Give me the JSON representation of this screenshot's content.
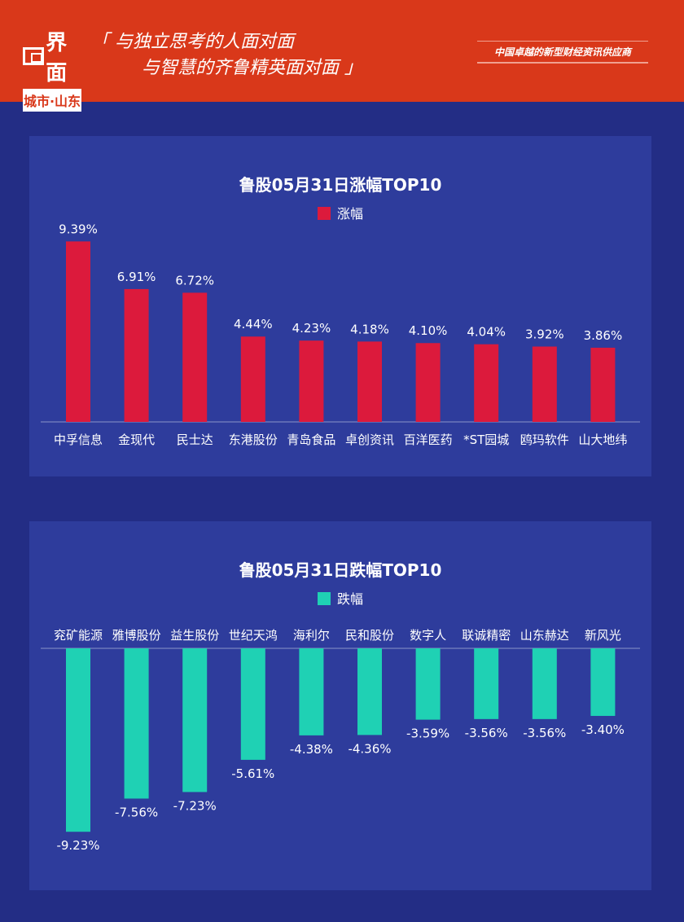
{
  "header": {
    "logo_text": "界面",
    "logo_sub": "城市·山东",
    "slogan_line1": "「 与独立思考的人面对面",
    "slogan_line2": "与智慧的齐鲁精英面对面 」",
    "tagline": "中国卓越的新型财经资讯供应商"
  },
  "chart_data": [
    {
      "type": "bar",
      "title": "鲁股05月31日涨幅TOP10",
      "legend": "涨幅",
      "color": "#dc1a3c",
      "legend_position": "top",
      "categories": [
        "中孚信息",
        "金现代",
        "民士达",
        "东港股份",
        "青岛食品",
        "卓创资讯",
        "百洋医药",
        "*ST园城",
        "鸥玛软件",
        "山大地纬"
      ],
      "values": [
        9.39,
        6.91,
        6.72,
        4.44,
        4.23,
        4.18,
        4.1,
        4.04,
        3.92,
        3.86
      ],
      "labels": [
        "9.39%",
        "6.91%",
        "6.72%",
        "4.44%",
        "4.23%",
        "4.18%",
        "4.10%",
        "4.04%",
        "3.92%",
        "3.86%"
      ]
    },
    {
      "type": "bar",
      "title": "鲁股05月31日跌幅TOP10",
      "legend": "跌幅",
      "color": "#1fd1b4",
      "legend_position": "top",
      "categories": [
        "兖矿能源",
        "雅博股份",
        "益生股份",
        "世纪天鸿",
        "海利尔",
        "民和股份",
        "数字人",
        "联诚精密",
        "山东赫达",
        "新风光"
      ],
      "values": [
        -9.23,
        -7.56,
        -7.23,
        -5.61,
        -4.38,
        -4.36,
        -3.59,
        -3.56,
        -3.56,
        -3.4
      ],
      "labels": [
        "-9.23%",
        "-7.56%",
        "-7.23%",
        "-5.61%",
        "-4.38%",
        "-4.36%",
        "-3.59%",
        "-3.56%",
        "-3.56%",
        "-3.40%"
      ]
    }
  ]
}
